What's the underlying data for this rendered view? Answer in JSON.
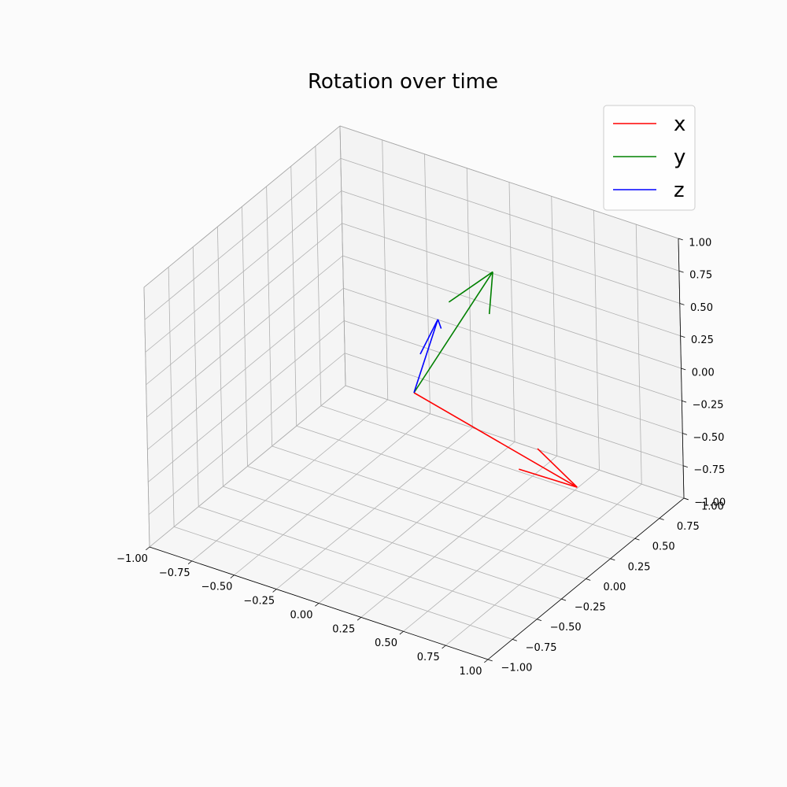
{
  "chart_data": {
    "type": "line",
    "subtype": "3d-quiver",
    "title": "Rotation over time",
    "xlabel": "",
    "ylabel": "",
    "zlabel": "",
    "xlim": [
      -1.0,
      1.0
    ],
    "ylim": [
      -1.0,
      1.0
    ],
    "zlim": [
      -1.0,
      1.0
    ],
    "xticks": [
      "−1.00",
      "−0.75",
      "−0.50",
      "−0.25",
      "0.00",
      "0.25",
      "0.50",
      "0.75",
      "1.00"
    ],
    "yticks": [
      "−1.00",
      "−0.75",
      "−0.50",
      "−0.25",
      "0.00",
      "0.25",
      "0.50",
      "0.75",
      "1.00"
    ],
    "zticks": [
      "−1.00",
      "−0.75",
      "−0.50",
      "−0.25",
      "0.00",
      "0.25",
      "0.50",
      "0.75",
      "1.00"
    ],
    "grid": true,
    "legend_position": "top-right",
    "origin": [
      0,
      0,
      0
    ],
    "series": [
      {
        "name": "x",
        "color": "#ff0000",
        "vector": [
          0.9,
          0.1,
          -0.4
        ]
      },
      {
        "name": "y",
        "color": "#008000",
        "vector": [
          -0.05,
          0.9,
          0.35
        ]
      },
      {
        "name": "z",
        "color": "#0000ff",
        "vector": [
          0.3,
          -0.25,
          0.85
        ]
      }
    ]
  }
}
